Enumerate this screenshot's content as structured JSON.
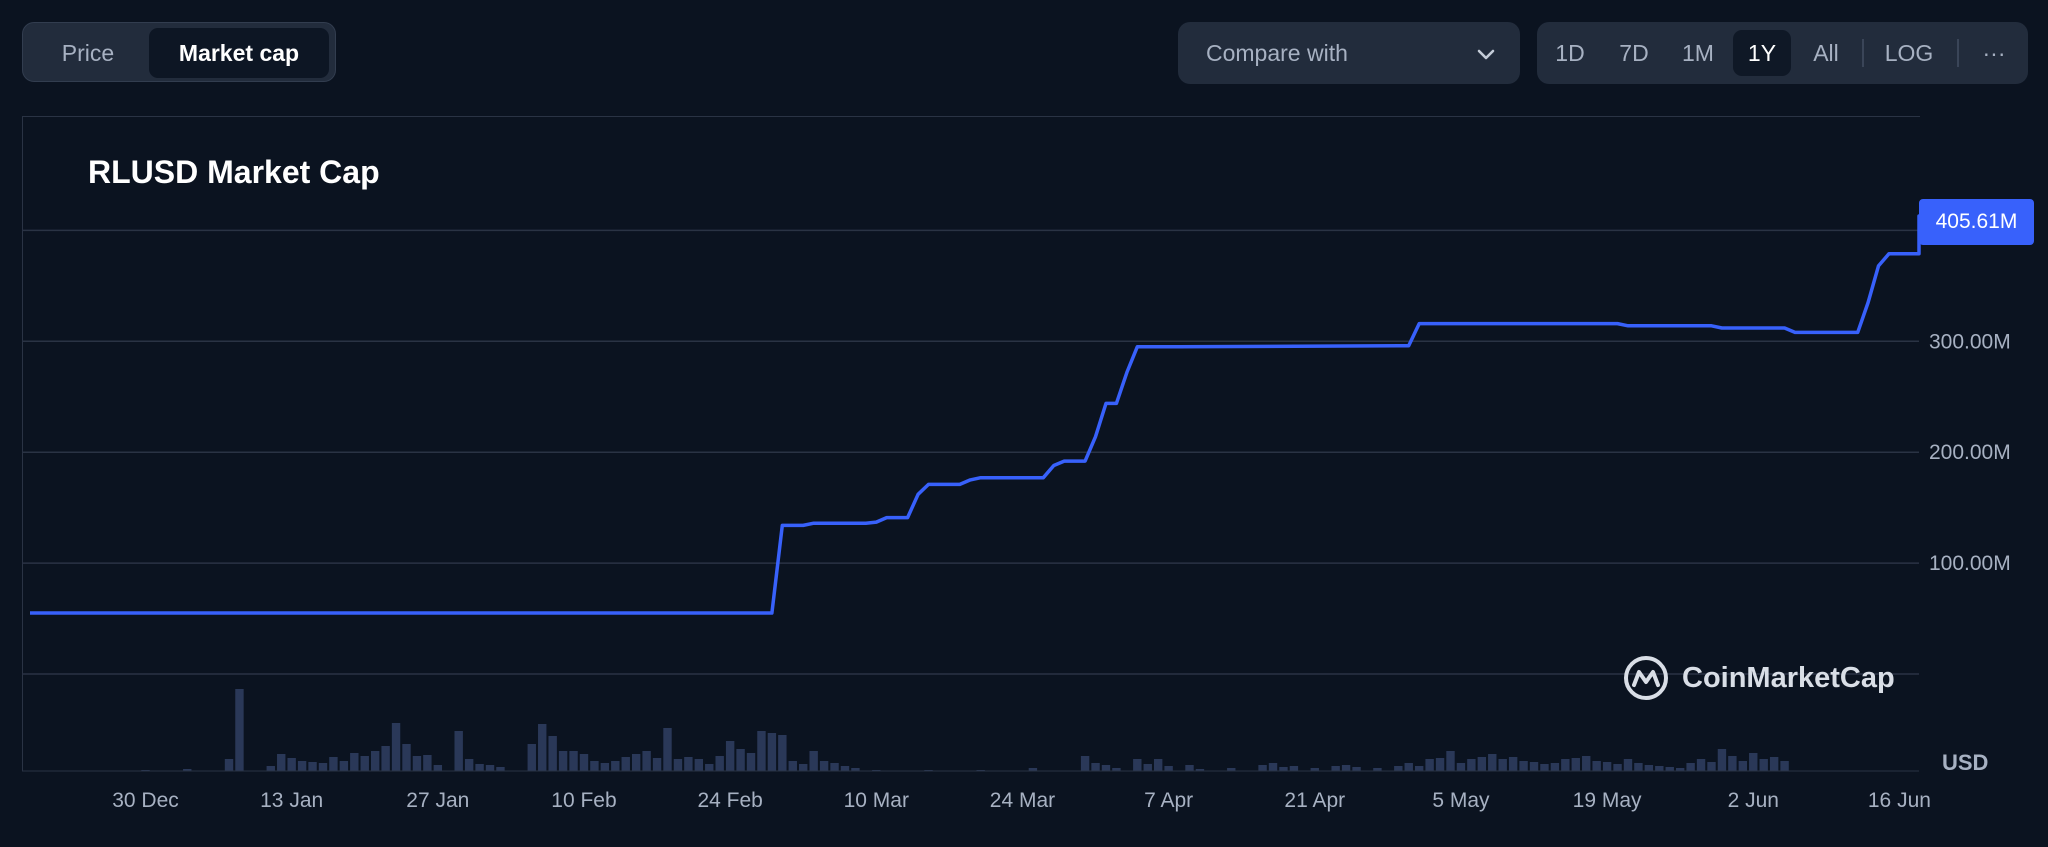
{
  "toggle": {
    "price_label": "Price",
    "market_cap_label": "Market cap"
  },
  "compare": {
    "label": "Compare with"
  },
  "ranges": [
    "1D",
    "7D",
    "1M",
    "1Y",
    "All",
    "LOG"
  ],
  "ranges_active": "1Y",
  "ranges_more": "···",
  "watermark": "CoinMarketCap",
  "currency": "USD",
  "colors": {
    "line": "#3861fb",
    "volume": "#2a3858",
    "grid": "#2a3344",
    "background": "#0b1320"
  },
  "chart_data": {
    "type": "line",
    "title": "RLUSD Market Cap",
    "current_value_label": "405.61M",
    "x_ticks": [
      "30 Dec",
      "13 Jan",
      "27 Jan",
      "10 Feb",
      "24 Feb",
      "10 Mar",
      "24 Mar",
      "7 Apr",
      "21 Apr",
      "5 May",
      "19 May",
      "2 Jun",
      "16 Jun"
    ],
    "y_ticks": [
      {
        "value": 100,
        "label": "100.00M"
      },
      {
        "value": 200,
        "label": "200.00M"
      },
      {
        "value": 300,
        "label": "300.00M"
      }
    ],
    "y_unit": "M USD",
    "ylim": [
      -55,
      500
    ],
    "x_range_days": [
      -17,
      157
    ],
    "series": [
      {
        "values_day_mcap": [
          [
            -17,
            55
          ],
          [
            60,
            55
          ],
          [
            61,
            134
          ],
          [
            63,
            134
          ],
          [
            64,
            136
          ],
          [
            69,
            136
          ],
          [
            70,
            137
          ],
          [
            71,
            141
          ],
          [
            73,
            141
          ],
          [
            74,
            162
          ],
          [
            75,
            171
          ],
          [
            78,
            171
          ],
          [
            79,
            175
          ],
          [
            80,
            177
          ],
          [
            86,
            177
          ],
          [
            87,
            188
          ],
          [
            88,
            192
          ],
          [
            90,
            192
          ],
          [
            91,
            214
          ],
          [
            92,
            244
          ],
          [
            93,
            244
          ],
          [
            94,
            272
          ],
          [
            95,
            295
          ],
          [
            99,
            295
          ],
          [
            120,
            296
          ],
          [
            121,
            296
          ],
          [
            122,
            316
          ],
          [
            141,
            316
          ],
          [
            142,
            314
          ],
          [
            150,
            314
          ],
          [
            151,
            312
          ],
          [
            157,
            312
          ],
          [
            158,
            308
          ],
          [
            164,
            308
          ],
          [
            165,
            335
          ],
          [
            166,
            368
          ],
          [
            167,
            379
          ],
          [
            170,
            379
          ],
          [
            171,
            387
          ],
          [
            172,
            393
          ],
          [
            173,
            413
          ],
          [
            174,
            412
          ],
          [
            175,
            406
          ],
          [
            180,
            406
          ]
        ]
      }
    ],
    "volume_bars": [
      [
        0,
        1
      ],
      [
        4,
        2
      ],
      [
        8,
        12
      ],
      [
        9,
        82
      ],
      [
        12,
        5
      ],
      [
        13,
        17
      ],
      [
        14,
        13
      ],
      [
        15,
        10
      ],
      [
        16,
        9
      ],
      [
        17,
        8
      ],
      [
        18,
        14
      ],
      [
        19,
        10
      ],
      [
        20,
        18
      ],
      [
        21,
        15
      ],
      [
        22,
        20
      ],
      [
        23,
        25
      ],
      [
        24,
        48
      ],
      [
        25,
        27
      ],
      [
        26,
        15
      ],
      [
        27,
        16
      ],
      [
        28,
        6
      ],
      [
        30,
        40
      ],
      [
        31,
        12
      ],
      [
        32,
        7
      ],
      [
        33,
        6
      ],
      [
        34,
        4
      ],
      [
        37,
        27
      ],
      [
        38,
        47
      ],
      [
        39,
        35
      ],
      [
        40,
        20
      ],
      [
        41,
        20
      ],
      [
        42,
        17
      ],
      [
        43,
        10
      ],
      [
        44,
        8
      ],
      [
        45,
        10
      ],
      [
        46,
        14
      ],
      [
        47,
        17
      ],
      [
        48,
        20
      ],
      [
        49,
        13
      ],
      [
        50,
        43
      ],
      [
        51,
        12
      ],
      [
        52,
        14
      ],
      [
        53,
        12
      ],
      [
        54,
        7
      ],
      [
        55,
        15
      ],
      [
        56,
        30
      ],
      [
        57,
        22
      ],
      [
        58,
        18
      ],
      [
        59,
        40
      ],
      [
        60,
        38
      ],
      [
        61,
        36
      ],
      [
        62,
        10
      ],
      [
        63,
        7
      ],
      [
        64,
        20
      ],
      [
        65,
        10
      ],
      [
        66,
        8
      ],
      [
        67,
        5
      ],
      [
        68,
        3
      ],
      [
        70,
        1
      ],
      [
        75,
        1
      ],
      [
        80,
        1
      ],
      [
        85,
        3
      ],
      [
        90,
        15
      ],
      [
        91,
        8
      ],
      [
        92,
        6
      ],
      [
        93,
        3
      ],
      [
        95,
        12
      ],
      [
        96,
        7
      ],
      [
        97,
        12
      ],
      [
        98,
        5
      ],
      [
        100,
        6
      ],
      [
        101,
        2
      ],
      [
        104,
        3
      ],
      [
        107,
        6
      ],
      [
        108,
        8
      ],
      [
        109,
        4
      ],
      [
        110,
        5
      ],
      [
        112,
        3
      ],
      [
        114,
        5
      ],
      [
        115,
        6
      ],
      [
        116,
        4
      ],
      [
        118,
        3
      ],
      [
        120,
        5
      ],
      [
        121,
        8
      ],
      [
        122,
        5
      ],
      [
        123,
        12
      ],
      [
        124,
        13
      ],
      [
        125,
        20
      ],
      [
        126,
        8
      ],
      [
        127,
        12
      ],
      [
        128,
        14
      ],
      [
        129,
        17
      ],
      [
        130,
        12
      ],
      [
        131,
        14
      ],
      [
        132,
        10
      ],
      [
        133,
        9
      ],
      [
        134,
        7
      ],
      [
        135,
        8
      ],
      [
        136,
        12
      ],
      [
        137,
        13
      ],
      [
        138,
        15
      ],
      [
        139,
        10
      ],
      [
        140,
        9
      ],
      [
        141,
        7
      ],
      [
        142,
        12
      ],
      [
        143,
        8
      ],
      [
        144,
        6
      ],
      [
        145,
        5
      ],
      [
        146,
        4
      ],
      [
        147,
        3
      ],
      [
        148,
        8
      ],
      [
        149,
        12
      ],
      [
        150,
        9
      ],
      [
        151,
        22
      ],
      [
        152,
        15
      ],
      [
        153,
        10
      ],
      [
        154,
        18
      ],
      [
        155,
        12
      ],
      [
        156,
        14
      ],
      [
        157,
        10
      ]
    ]
  }
}
